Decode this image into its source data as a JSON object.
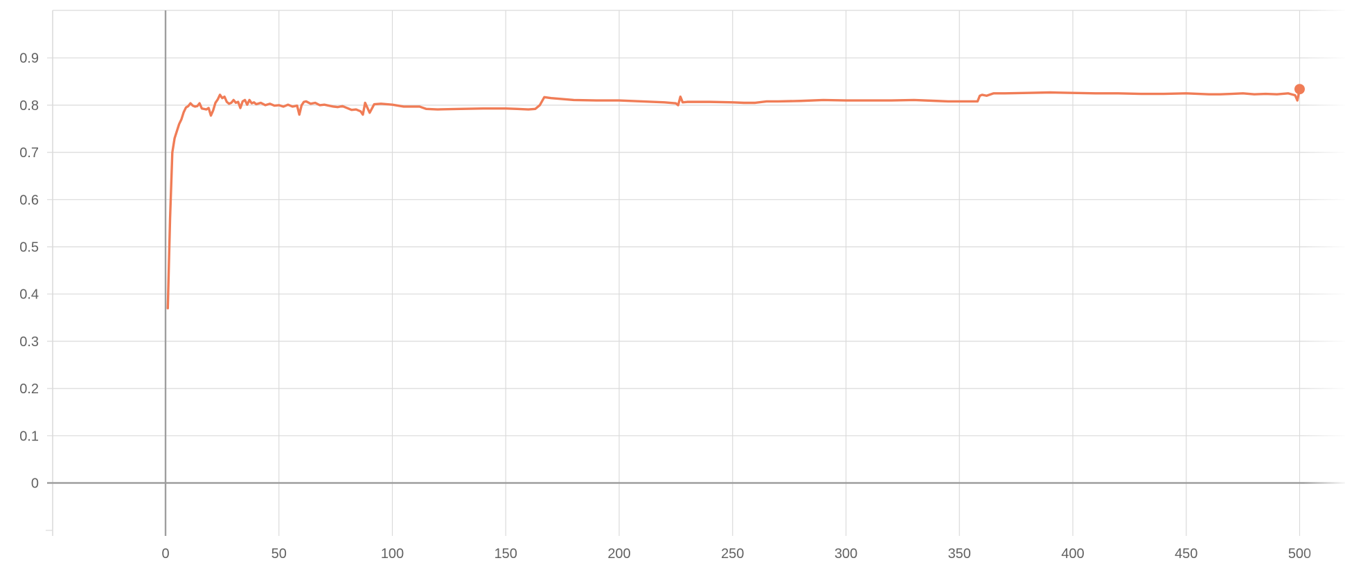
{
  "chart_data": {
    "type": "line",
    "title": "",
    "xlabel": "",
    "ylabel": "",
    "xlim": [
      -50,
      520
    ],
    "ylim": [
      -0.1,
      1.0
    ],
    "x_ticks": [
      0,
      50,
      100,
      150,
      200,
      250,
      300,
      350,
      400,
      450,
      500
    ],
    "x_tick_labels": [
      "0",
      "50",
      "100",
      "150",
      "200",
      "250",
      "300",
      "350",
      "400",
      "450",
      "500"
    ],
    "y_ticks": [
      0,
      0.1,
      0.2,
      0.3,
      0.4,
      0.5,
      0.6,
      0.7,
      0.8,
      0.9
    ],
    "y_tick_labels": [
      "0",
      "0.1",
      "0.2",
      "0.3",
      "0.4",
      "0.5",
      "0.6",
      "0.7",
      "0.8",
      "0.9"
    ],
    "grid": true,
    "legend": "none",
    "colors": {
      "series": "#f07c56",
      "grid": "#dadada",
      "axis": "#9e9e9e",
      "tick_text": "#616161"
    },
    "series": [
      {
        "color": "#f07c56",
        "highlight_last_point": true,
        "x": [
          1,
          2,
          3,
          4,
          5,
          6,
          7,
          8,
          9,
          10,
          11,
          12,
          13,
          14,
          15,
          16,
          17,
          18,
          19,
          20,
          21,
          22,
          23,
          24,
          25,
          26,
          27,
          28,
          29,
          30,
          31,
          32,
          33,
          34,
          35,
          36,
          37,
          38,
          39,
          40,
          42,
          44,
          46,
          48,
          50,
          52,
          54,
          56,
          58,
          59,
          60,
          61,
          62,
          64,
          66,
          68,
          70,
          72,
          74,
          76,
          78,
          80,
          82,
          84,
          86,
          87,
          88,
          90,
          92,
          95,
          100,
          105,
          110,
          112,
          115,
          120,
          130,
          140,
          150,
          155,
          160,
          163,
          165,
          167,
          170,
          175,
          180,
          190,
          200,
          210,
          220,
          225,
          226,
          227,
          228,
          230,
          240,
          250,
          255,
          260,
          265,
          270,
          280,
          290,
          300,
          310,
          320,
          330,
          340,
          345,
          350,
          355,
          358,
          359,
          360,
          362,
          365,
          370,
          380,
          390,
          400,
          410,
          420,
          430,
          440,
          450,
          460,
          465,
          470,
          475,
          480,
          485,
          490,
          495,
          498,
          499,
          500
        ],
        "y": [
          0.37,
          0.56,
          0.7,
          0.73,
          0.745,
          0.76,
          0.77,
          0.785,
          0.795,
          0.798,
          0.804,
          0.799,
          0.797,
          0.798,
          0.804,
          0.793,
          0.792,
          0.791,
          0.794,
          0.778,
          0.789,
          0.805,
          0.812,
          0.822,
          0.815,
          0.818,
          0.807,
          0.803,
          0.805,
          0.811,
          0.805,
          0.807,
          0.794,
          0.808,
          0.811,
          0.801,
          0.811,
          0.804,
          0.806,
          0.802,
          0.805,
          0.8,
          0.803,
          0.799,
          0.8,
          0.797,
          0.801,
          0.797,
          0.799,
          0.78,
          0.8,
          0.807,
          0.808,
          0.803,
          0.805,
          0.8,
          0.801,
          0.799,
          0.797,
          0.796,
          0.798,
          0.794,
          0.79,
          0.791,
          0.787,
          0.78,
          0.805,
          0.784,
          0.802,
          0.803,
          0.801,
          0.797,
          0.797,
          0.797,
          0.792,
          0.791,
          0.792,
          0.793,
          0.793,
          0.792,
          0.791,
          0.792,
          0.8,
          0.817,
          0.815,
          0.813,
          0.811,
          0.81,
          0.81,
          0.808,
          0.806,
          0.804,
          0.8,
          0.818,
          0.806,
          0.807,
          0.807,
          0.806,
          0.805,
          0.805,
          0.808,
          0.808,
          0.809,
          0.811,
          0.81,
          0.81,
          0.81,
          0.811,
          0.809,
          0.808,
          0.808,
          0.808,
          0.808,
          0.82,
          0.822,
          0.82,
          0.825,
          0.825,
          0.826,
          0.827,
          0.826,
          0.825,
          0.825,
          0.824,
          0.824,
          0.825,
          0.823,
          0.823,
          0.824,
          0.825,
          0.823,
          0.824,
          0.823,
          0.825,
          0.821,
          0.81,
          0.834
        ]
      }
    ]
  }
}
